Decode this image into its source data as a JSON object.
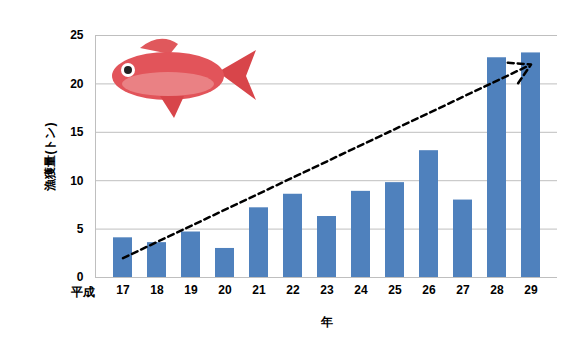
{
  "chart_data": {
    "type": "bar",
    "categories": [
      "17",
      "18",
      "19",
      "20",
      "21",
      "22",
      "23",
      "24",
      "25",
      "26",
      "27",
      "28",
      "29"
    ],
    "values": [
      4.1,
      3.6,
      4.7,
      3.0,
      7.2,
      8.6,
      6.3,
      8.9,
      9.8,
      13.1,
      8.0,
      22.7,
      23.2
    ],
    "color": "#4f81bd",
    "x_label": "年",
    "y_label": "漁獲量(トン)",
    "x_tick_prefix": "平成",
    "ylim": [
      0,
      25
    ],
    "yticks": [
      0,
      5,
      10,
      15,
      20,
      25
    ],
    "grid": true,
    "trend_arrow": {
      "start": 2,
      "end": 22
    }
  }
}
